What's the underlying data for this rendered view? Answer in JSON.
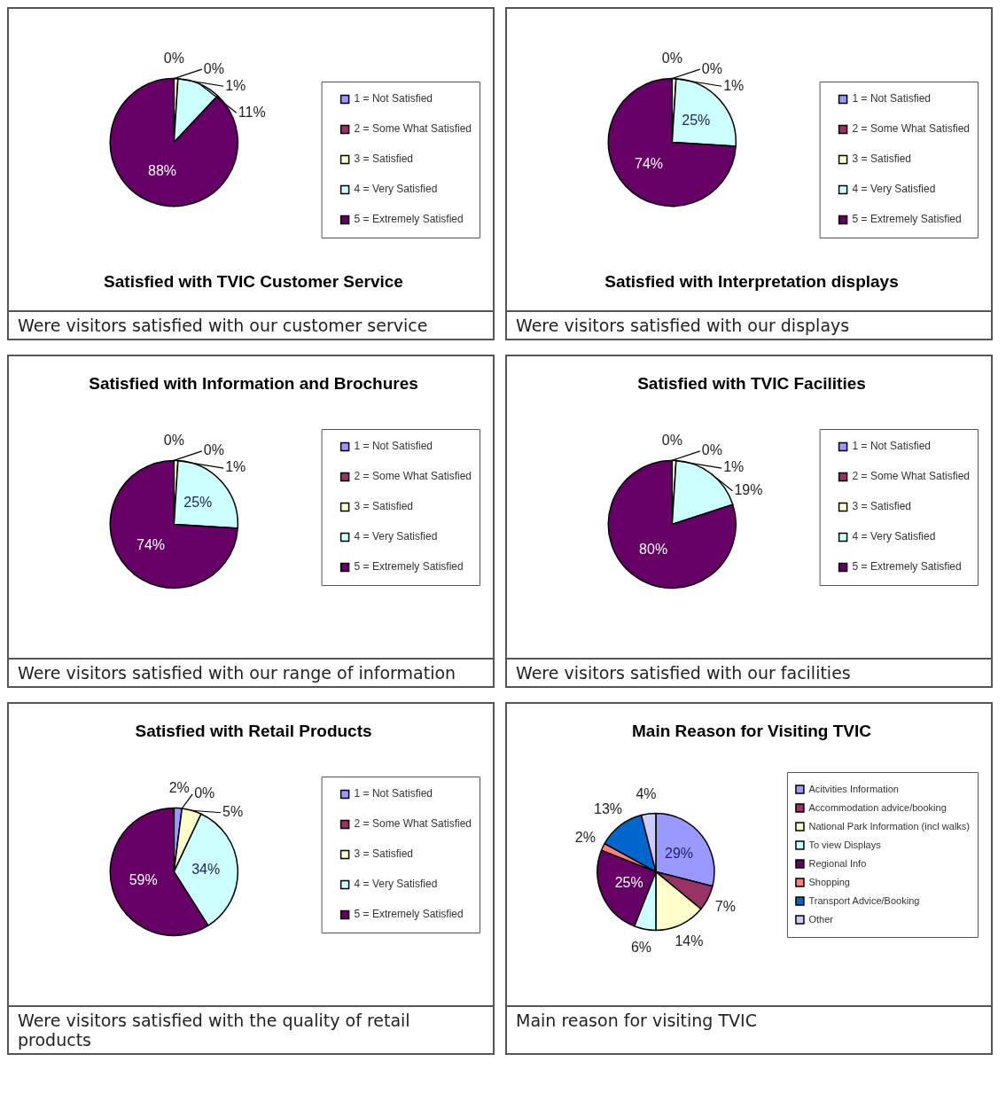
{
  "chart_data": [
    {
      "type": "pie",
      "title": "Satisfied with TVIC Customer Service",
      "categories": [
        "1 = Not Satisfied",
        "2 = Some What Satisfied",
        "3 = Satisfied",
        "4 = Very Satisfied",
        "5 = Extremely Satisfied"
      ],
      "values": [
        0,
        0,
        1,
        11,
        88
      ],
      "value_labels": [
        "0%",
        "0%",
        "1%",
        "11%",
        "88%"
      ],
      "colors": [
        "#9999ff",
        "#993366",
        "#ffffcc",
        "#ccffff",
        "#660066"
      ],
      "legend": "right",
      "annotations": [
        "Were visitors satisfied with our customer service"
      ]
    },
    {
      "type": "pie",
      "title": "Satisfied with Interpretation displays",
      "categories": [
        "1 = Not Satisfied",
        "2 = Some What Satisfied",
        "3 = Satisfied",
        "4 = Very Satisfied",
        "5 = Extremely Satisfied"
      ],
      "values": [
        0,
        0,
        1,
        25,
        74
      ],
      "value_labels": [
        "0%",
        "0%",
        "1%",
        "25%",
        "74%"
      ],
      "colors": [
        "#9999ff",
        "#993366",
        "#ffffcc",
        "#ccffff",
        "#660066"
      ],
      "legend": "right",
      "annotations": [
        "Were visitors satisfied with our displays"
      ]
    },
    {
      "type": "pie",
      "title": "Satisfied with Information and Brochures",
      "categories": [
        "1 = Not Satisfied",
        "2 = Some What Satisfied",
        "3 = Satisfied",
        "4 = Very Satisfied",
        "5 = Extremely Satisfied"
      ],
      "values": [
        0,
        0,
        1,
        25,
        74
      ],
      "value_labels": [
        "0%",
        "0%",
        "1%",
        "25%",
        "74%"
      ],
      "colors": [
        "#9999ff",
        "#993366",
        "#ffffcc",
        "#ccffff",
        "#660066"
      ],
      "legend": "right",
      "annotations": [
        "Were visitors satisfied with our range of information"
      ]
    },
    {
      "type": "pie",
      "title": "Satisfied with TVIC Facilities",
      "categories": [
        "1 = Not Satisfied",
        "2 = Some What Satisfied",
        "3 = Satisfied",
        "4 = Very Satisfied",
        "5 = Extremely Satisfied"
      ],
      "values": [
        0,
        0,
        1,
        19,
        80
      ],
      "value_labels": [
        "0%",
        "0%",
        "1%",
        "19%",
        "80%"
      ],
      "colors": [
        "#9999ff",
        "#993366",
        "#ffffcc",
        "#ccffff",
        "#660066"
      ],
      "legend": "right",
      "annotations": [
        "Were visitors satisfied with our facilities"
      ]
    },
    {
      "type": "pie",
      "title": "Satisfied with Retail Products",
      "categories": [
        "1 = Not Satisfied",
        "2 = Some What Satisfied",
        "3 = Satisfied",
        "4 = Very Satisfied",
        "5 = Extremely Satisfied"
      ],
      "values": [
        2,
        0,
        5,
        34,
        59
      ],
      "value_labels": [
        "2%",
        "0%",
        "5%",
        "34%",
        "59%"
      ],
      "colors": [
        "#9999ff",
        "#993366",
        "#ffffcc",
        "#ccffff",
        "#660066"
      ],
      "legend": "right",
      "annotations": [
        "Were visitors satisfied with the quality of retail products"
      ]
    },
    {
      "type": "pie",
      "title": "Main Reason for Visiting TVIC",
      "categories": [
        "Acitvities Information",
        "Accommodation advice/booking",
        "National Park Information (incl walks)",
        "To view Displays",
        "Regional Info",
        "Shopping",
        "Transport Advice/Booking",
        "Other"
      ],
      "values": [
        29,
        7,
        14,
        6,
        25,
        2,
        13,
        4
      ],
      "value_labels": [
        "29%",
        "7%",
        "14%",
        "6%",
        "25%",
        "2%",
        "13%",
        "4%"
      ],
      "colors": [
        "#9999ff",
        "#993366",
        "#ffffcc",
        "#ccffff",
        "#660066",
        "#ff8080",
        "#0066cc",
        "#ccccff"
      ],
      "legend": "right",
      "annotations": [
        "Main reason for visiting TVIC"
      ]
    }
  ]
}
